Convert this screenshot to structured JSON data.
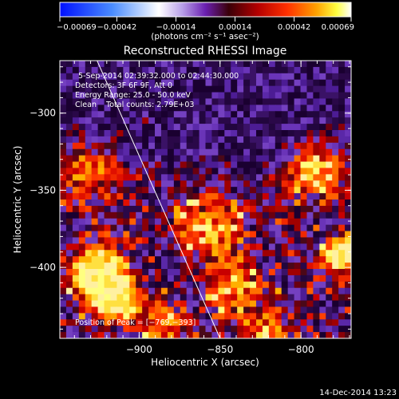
{
  "chart_data": {
    "type": "heatmap",
    "title": "Reconstructed RHESSI Image",
    "xlabel": "Heliocentric X (arcsec)",
    "ylabel": "Heliocentric Y (arcsec)",
    "xlim": [
      -949,
      -769
    ],
    "ylim": [
      -446,
      -266
    ],
    "x_ticks": [
      {
        "value": -900,
        "label": "−900"
      },
      {
        "value": -850,
        "label": "−850"
      },
      {
        "value": -800,
        "label": "−800"
      }
    ],
    "y_ticks": [
      {
        "value": -300,
        "label": "−300"
      },
      {
        "value": -350,
        "label": "−350"
      },
      {
        "value": -400,
        "label": "−400"
      }
    ],
    "colorbar": {
      "min": -0.00069,
      "max": 0.00069,
      "tick_values": [
        -0.00069,
        -0.00042,
        -0.00014,
        0.00014,
        0.00042,
        0.00069
      ],
      "tick_labels": [
        "−0.00069",
        "−0.00042",
        "−0.00014",
        "0.00014",
        "0.00042",
        "0.00069"
      ],
      "unit_label": "(photons cm⁻² s⁻¹ asec⁻²)",
      "colors": [
        "#0000ff",
        "#ffffff",
        "#6a1fb0",
        "#ff2000",
        "#ffe000",
        "#ffffff"
      ]
    },
    "annotations": [
      "5-Sep-2014 02:39:32.000 to 02:44:30.000",
      "Detectors: 3F 6F 9F, Att 0",
      "Energy Range: 25.0 - 50.0 keV",
      "Clean    Total counts: 2.79E+03"
    ],
    "peak_label": "Position of Peak = [−769,−393]",
    "limb_line": {
      "x": [
        -926,
        -850
      ],
      "y": [
        -266,
        -446
      ]
    },
    "footer_date": "14-Dec-2014 13:23"
  }
}
